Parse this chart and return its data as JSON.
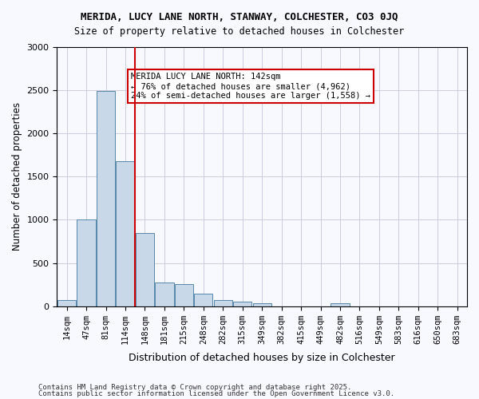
{
  "title1": "MERIDA, LUCY LANE NORTH, STANWAY, COLCHESTER, CO3 0JQ",
  "title2": "Size of property relative to detached houses in Colchester",
  "xlabel": "Distribution of detached houses by size in Colchester",
  "ylabel": "Number of detached properties",
  "categories": [
    "14sqm",
    "47sqm",
    "81sqm",
    "114sqm",
    "148sqm",
    "181sqm",
    "215sqm",
    "248sqm",
    "282sqm",
    "315sqm",
    "349sqm",
    "382sqm",
    "415sqm",
    "449sqm",
    "482sqm",
    "516sqm",
    "549sqm",
    "583sqm",
    "616sqm",
    "650sqm",
    "683sqm"
  ],
  "values": [
    75,
    1005,
    2490,
    1680,
    850,
    270,
    260,
    145,
    75,
    55,
    35,
    0,
    0,
    0,
    35,
    0,
    0,
    0,
    0,
    0,
    0
  ],
  "bar_color": "#c8d8e8",
  "bar_edge_color": "#5588aa",
  "vline_x": 3,
  "vline_color": "#cc0000",
  "ylim": [
    0,
    3000
  ],
  "yticks": [
    0,
    500,
    1000,
    1500,
    2000,
    2500,
    3000
  ],
  "annotation_text": "MERIDA LUCY LANE NORTH: 142sqm\n← 76% of detached houses are smaller (4,962)\n24% of semi-detached houses are larger (1,558) →",
  "annotation_box_color": "#ffffff",
  "annotation_box_edge": "#cc0000",
  "footer1": "Contains HM Land Registry data © Crown copyright and database right 2025.",
  "footer2": "Contains public sector information licensed under the Open Government Licence v3.0.",
  "background_color": "#f8f8ff",
  "grid_color": "#ccccdd"
}
